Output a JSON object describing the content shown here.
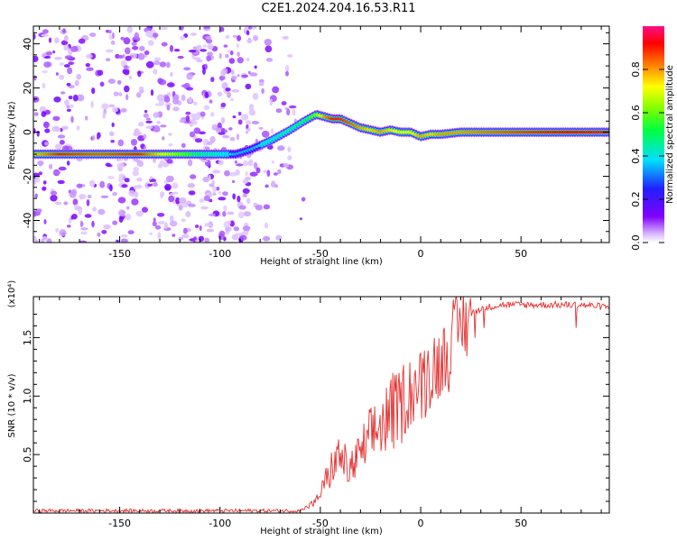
{
  "title": "C2E1.2024.204.16.53.R11",
  "chart_data": [
    {
      "type": "heatmap",
      "xlabel": "Height of straight line (km)",
      "ylabel": "Frequency (Hz)",
      "xlim": [
        -193,
        94
      ],
      "ylim": [
        -50,
        48
      ],
      "xticks": [
        -150,
        -100,
        -50,
        0,
        50
      ],
      "yticks": [
        -40,
        -20,
        0,
        20,
        40
      ],
      "colorbar": {
        "label": "Normalized spectral amplitude",
        "range": [
          0,
          1
        ],
        "ticks": [
          "0.0",
          "0.2",
          "0.4",
          "0.6",
          "0.8"
        ],
        "colormap": "rainbow (white → purple → blue → cyan → green → yellow → orange → red → pink)"
      },
      "ridge": {
        "x": [
          -193,
          -180,
          -160,
          -140,
          -120,
          -105,
          -92,
          -85,
          -75,
          -65,
          -58,
          -52,
          -48,
          -44,
          -40,
          -35,
          -30,
          -25,
          -20,
          -15,
          -10,
          -5,
          0,
          5,
          10,
          20,
          40,
          60,
          94
        ],
        "y": [
          -10,
          -10,
          -10,
          -10,
          -10,
          -10,
          -10,
          -8,
          -4,
          1,
          5,
          8,
          7,
          6,
          6,
          4,
          2,
          1,
          0,
          1,
          0,
          0,
          -2,
          -1,
          -1,
          0,
          0,
          0,
          0
        ],
        "amplitude": [
          0.75,
          0.9,
          0.85,
          0.9,
          0.6,
          0.45,
          0.35,
          0.35,
          0.4,
          0.45,
          0.5,
          0.6,
          0.8,
          0.9,
          0.9,
          0.85,
          0.8,
          0.75,
          0.8,
          0.75,
          0.7,
          0.7,
          0.8,
          0.75,
          0.8,
          0.8,
          0.85,
          0.9,
          0.95
        ]
      }
    },
    {
      "type": "line",
      "xlabel": "Height of straight line (km)",
      "ylabel": "SNR (10 * v/v)",
      "multiplier": "(x10⁴)",
      "xlim": [
        -193,
        94
      ],
      "ylim": [
        0,
        1.85
      ],
      "xticks": [
        -150,
        -100,
        -50,
        0,
        50
      ],
      "yticks": [
        "0.5",
        "1.0",
        "1.5"
      ],
      "color": "#e53030",
      "series": [
        {
          "x": [
            -193,
            -150,
            -100,
            -60,
            -52,
            -48,
            -45,
            -42,
            -40,
            -36,
            -32,
            -28,
            -24,
            -20,
            -15,
            -10,
            -5,
            0,
            5,
            10,
            15,
            20,
            25,
            30,
            40,
            50,
            60,
            70,
            80,
            94
          ],
          "y": [
            0.02,
            0.02,
            0.02,
            0.02,
            0.1,
            0.25,
            0.35,
            0.45,
            0.5,
            0.35,
            0.45,
            0.55,
            0.65,
            0.75,
            0.85,
            0.95,
            1.05,
            1.1,
            1.2,
            1.3,
            1.45,
            1.6,
            1.7,
            1.75,
            1.78,
            1.78,
            1.78,
            1.78,
            1.78,
            1.76
          ]
        }
      ]
    }
  ]
}
